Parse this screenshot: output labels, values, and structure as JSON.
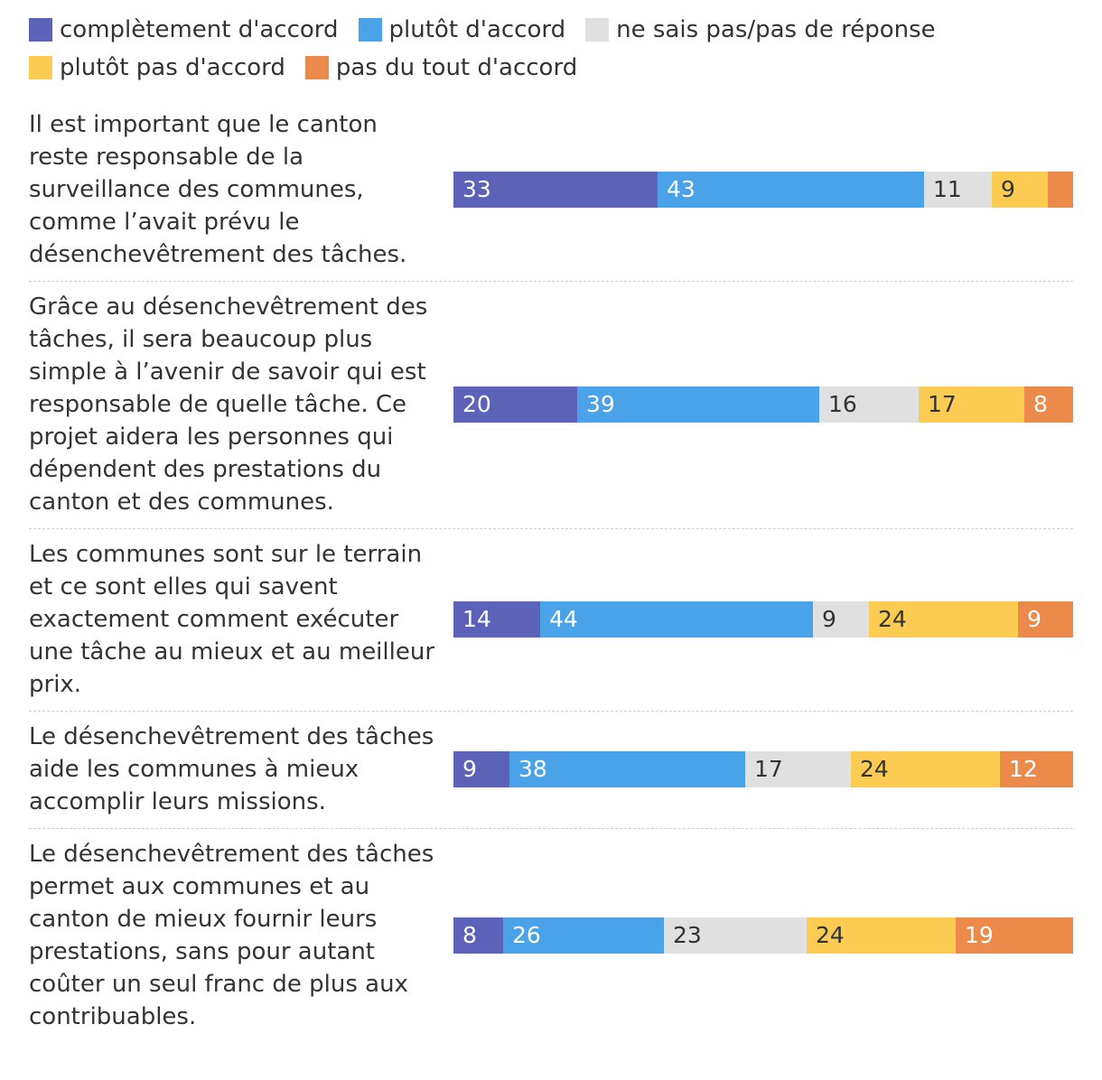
{
  "chart_data": {
    "type": "bar",
    "orientation": "horizontal",
    "stacked": true,
    "legend_position": "top",
    "grid": false,
    "xlim": [
      0,
      100
    ],
    "legend": [
      {
        "key": "completement",
        "label": "complètement d'accord",
        "color": "#5b62b8"
      },
      {
        "key": "plutot",
        "label": "plutôt d'accord",
        "color": "#4aa3e8"
      },
      {
        "key": "nsp",
        "label": "ne sais pas/pas de réponse",
        "color": "#e0e0e0"
      },
      {
        "key": "plutot_pas",
        "label": "plutôt pas d'accord",
        "color": "#fccb52"
      },
      {
        "key": "pas_du_tout",
        "label": "pas du tout d'accord",
        "color": "#ec8a4c"
      }
    ],
    "categories": [
      "Il est important que le canton reste responsable de la surveillance des communes, comme l’avait prévu le désenchevêtrement des tâches.",
      "Grâce au désenchevêtrement des tâches, il sera beaucoup plus simple à l’avenir de savoir qui est responsable de quelle tâche. Ce projet aidera les personnes qui dépendent des prestations du canton et des communes.",
      "Les communes sont sur le terrain et ce sont elles qui savent exactement comment exécuter une tâche au mieux et au meilleur prix.",
      "Le désenchevêtrement des tâches aide les communes à mieux accomplir leurs missions.",
      "Le désenchevêtrement des tâches permet aux communes et au canton de mieux fournir leurs prestations, sans pour autant coûter un seul franc de plus aux contribuables."
    ],
    "series": [
      {
        "name": "complètement d'accord",
        "values": [
          33,
          20,
          14,
          9,
          8
        ]
      },
      {
        "name": "plutôt d'accord",
        "values": [
          43,
          39,
          44,
          38,
          26
        ]
      },
      {
        "name": "ne sais pas/pas de réponse",
        "values": [
          11,
          16,
          9,
          17,
          23
        ]
      },
      {
        "name": "plutôt pas d'accord",
        "values": [
          9,
          17,
          24,
          24,
          24
        ]
      },
      {
        "name": "pas du tout d'accord",
        "values": [
          4,
          8,
          9,
          12,
          19
        ]
      }
    ],
    "data_labels": [
      [
        "33",
        "43",
        "11",
        "9",
        ""
      ],
      [
        "20",
        "39",
        "16",
        "17",
        "8"
      ],
      [
        "14",
        "44",
        "9",
        "24",
        "9"
      ],
      [
        "9",
        "38",
        "17",
        "24",
        "12"
      ],
      [
        "8",
        "26",
        "23",
        "24",
        "19"
      ]
    ]
  }
}
